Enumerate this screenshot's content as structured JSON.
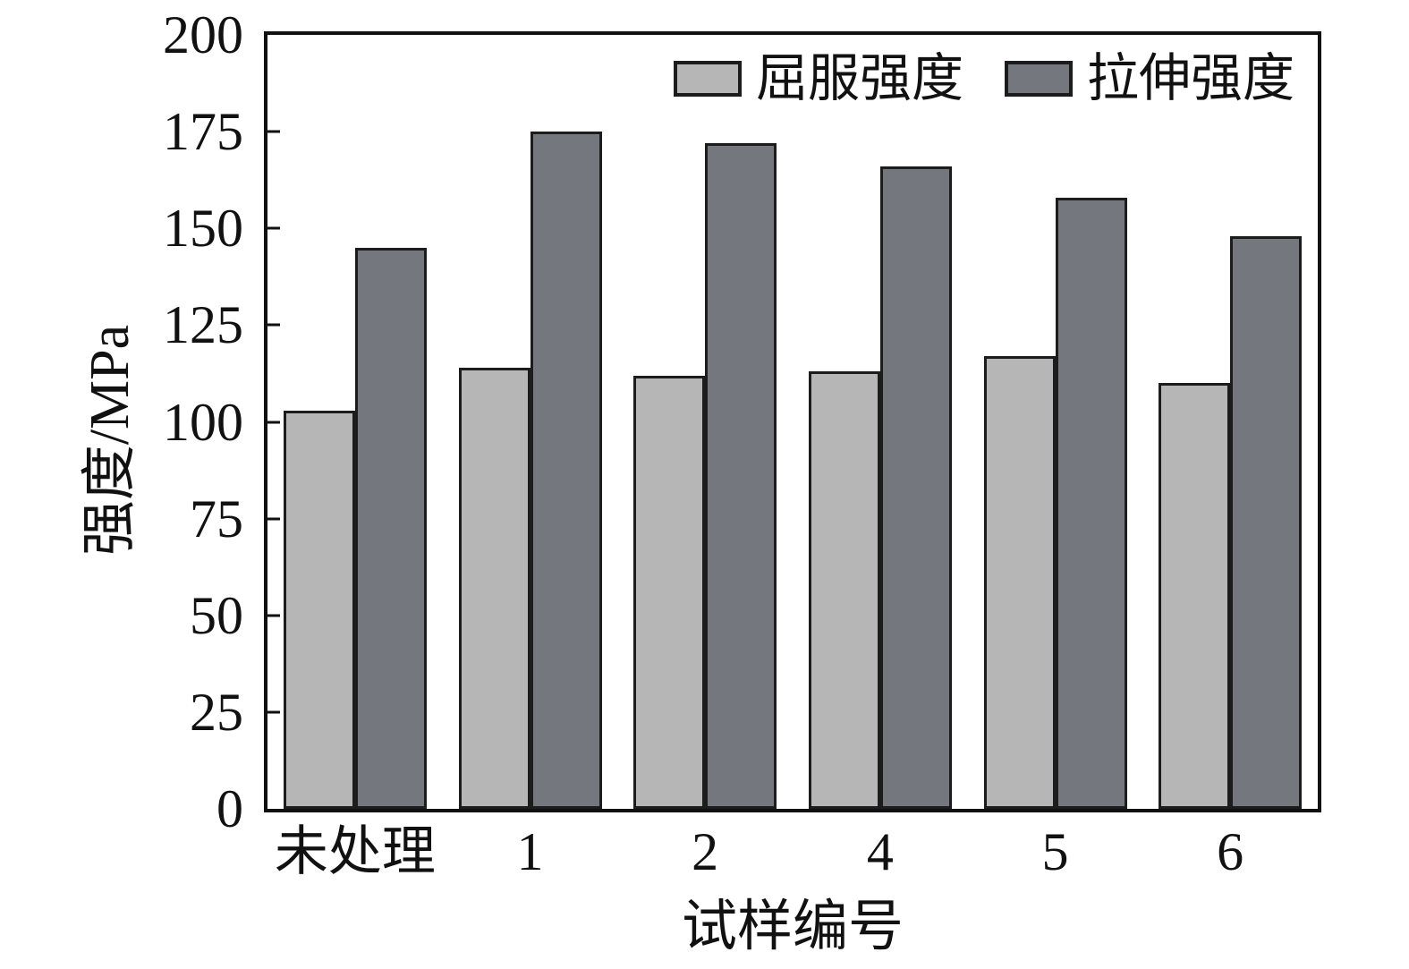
{
  "figure": {
    "background": "#ffffff"
  },
  "chart_data": {
    "type": "bar",
    "title": "",
    "xlabel": "试样编号",
    "ylabel": "强度/MPa",
    "categories": [
      "未处理",
      "1",
      "2",
      "4",
      "5",
      "6"
    ],
    "series": [
      {
        "name": "屈服强度",
        "color": "#b6b6b6",
        "values": [
          103,
          114,
          112,
          113,
          117,
          110
        ]
      },
      {
        "name": "拉伸强度",
        "color": "#75777e",
        "values": [
          145,
          175,
          172,
          166,
          158,
          148
        ]
      }
    ],
    "ylim": [
      0,
      200
    ],
    "yticks": [
      0,
      25,
      50,
      75,
      100,
      125,
      150,
      175,
      200
    ],
    "legend_position": "top-right-inside",
    "grid": false,
    "bar_border_color": "#1c1c1c",
    "axis_color": "#111111",
    "text_color": "#111111"
  }
}
